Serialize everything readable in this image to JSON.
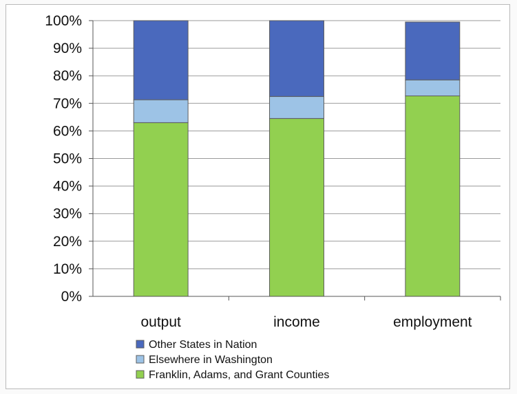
{
  "chart_data": {
    "type": "bar",
    "stacked": true,
    "percent": true,
    "categories": [
      "output",
      "income",
      "employment"
    ],
    "series": [
      {
        "name": "Franklin, Adams, and Grant Counties",
        "color": "#92d050",
        "values": [
          63,
          64.5,
          72.7
        ]
      },
      {
        "name": "Elsewhere in Washington",
        "color": "#9dc3e6",
        "values": [
          8.3,
          8,
          5.8
        ]
      },
      {
        "name": "Other States in Nation",
        "color": "#4a69bd",
        "values": [
          28.7,
          27.5,
          21
        ]
      }
    ],
    "yticks": [
      "0%",
      "10%",
      "20%",
      "30%",
      "40%",
      "50%",
      "60%",
      "70%",
      "80%",
      "90%",
      "100%"
    ],
    "ylim": [
      0,
      100
    ],
    "grid": true,
    "legend_position": "bottom-left",
    "legend_order": [
      "Other States in Nation",
      "Elsewhere in Washington",
      "Franklin, Adams, and Grant Counties"
    ]
  }
}
